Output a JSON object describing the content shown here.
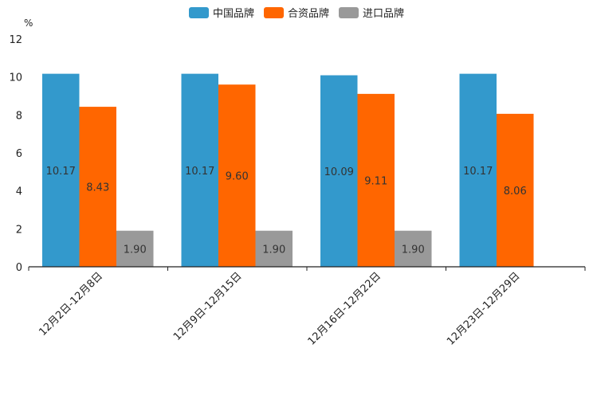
{
  "chart_data": {
    "type": "bar",
    "unit": "%",
    "categories": [
      "12月2日-12月8日",
      "12月9日-12月15日",
      "12月16日-12月22日",
      "12月23日-12月29日"
    ],
    "series": [
      {
        "name": "中国品牌",
        "color": "#3399cc",
        "values": [
          10.17,
          10.17,
          10.09,
          10.17
        ],
        "labels": [
          "10.17",
          "10.17",
          "10.09",
          "10.17"
        ]
      },
      {
        "name": "合资品牌",
        "color": "#ff6600",
        "values": [
          8.43,
          9.6,
          9.11,
          8.06
        ],
        "labels": [
          "8.43",
          "9.60",
          "9.11",
          "8.06"
        ]
      },
      {
        "name": "进口品牌",
        "color": "#999999",
        "values": [
          1.9,
          1.9,
          1.9,
          null
        ],
        "labels": [
          "1.90",
          "1.90",
          "1.90",
          ""
        ]
      }
    ],
    "ylim": [
      0,
      12
    ],
    "yticks": [
      0,
      2,
      4,
      6,
      8,
      10,
      12
    ],
    "legend_position": "top-center"
  }
}
